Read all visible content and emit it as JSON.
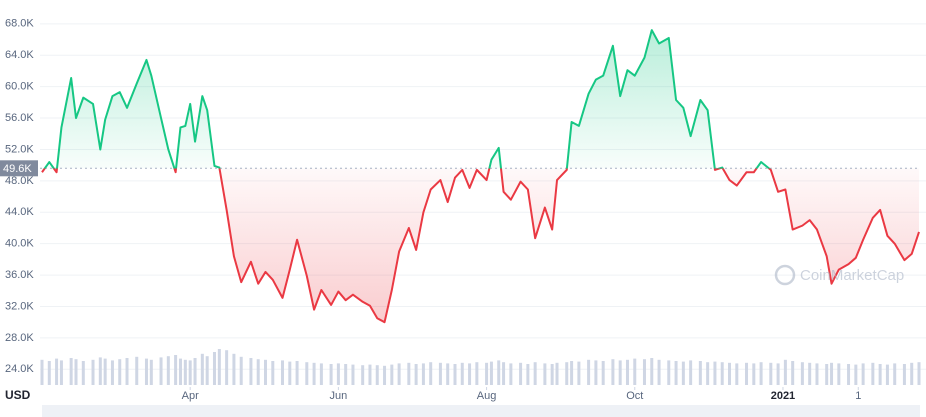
{
  "chart_data": {
    "type": "line",
    "currency": "USD",
    "watermark": "CoinMarketCap",
    "x": [
      0,
      3,
      6,
      8,
      12,
      14,
      17,
      21,
      24,
      26,
      29,
      32,
      35,
      39,
      43,
      45,
      49,
      52,
      55,
      57,
      59,
      61,
      63,
      66,
      68,
      71,
      73,
      76,
      79,
      82,
      86,
      89,
      92,
      95,
      99,
      102,
      105,
      109,
      112,
      115,
      119,
      122,
      125,
      128,
      132,
      135,
      138,
      141,
      144,
      147,
      151,
      154,
      157,
      160,
      164,
      167,
      170,
      173,
      176,
      179,
      183,
      185,
      188,
      190,
      193,
      197,
      200,
      203,
      207,
      210,
      212,
      216,
      218,
      221,
      225,
      228,
      231,
      235,
      238,
      241,
      244,
      248,
      251,
      254,
      258,
      261,
      264,
      267,
      271,
      274,
      277,
      280,
      283,
      286,
      290,
      293,
      296,
      300,
      303,
      306,
      309,
      313,
      316,
      319,
      323,
      325,
      328,
      332,
      335,
      338,
      342,
      345,
      348,
      351,
      355,
      358,
      361
    ],
    "values": [
      49100,
      50400,
      49100,
      54800,
      61100,
      56000,
      58600,
      57800,
      52000,
      55800,
      58800,
      59300,
      57300,
      60400,
      63400,
      61400,
      56000,
      52000,
      49100,
      54800,
      55000,
      57800,
      53000,
      58800,
      57000,
      49900,
      49700,
      44300,
      38400,
      35100,
      37700,
      34900,
      36400,
      35400,
      33100,
      36700,
      40500,
      35900,
      31600,
      34100,
      32200,
      33900,
      32800,
      33500,
      32600,
      32100,
      30500,
      30000,
      34100,
      39000,
      42000,
      39200,
      44000,
      46900,
      48100,
      45300,
      48400,
      49400,
      47100,
      49400,
      48100,
      50700,
      52200,
      46600,
      45600,
      47900,
      46900,
      40700,
      44600,
      41800,
      48100,
      49400,
      55500,
      55000,
      59100,
      60900,
      61400,
      65200,
      58800,
      62100,
      61400,
      63700,
      67200,
      65500,
      66200,
      58300,
      57300,
      53700,
      58300,
      57000,
      49400,
      49700,
      48100,
      47400,
      49100,
      49100,
      50400,
      49400,
      46600,
      46900,
      41800,
      42300,
      43000,
      41800,
      38400,
      34900,
      36700,
      37400,
      38200,
      40500,
      43300,
      44300,
      41000,
      40000,
      37900,
      38700,
      41500
    ],
    "volumes": [
      42,
      40,
      44,
      41,
      45,
      43,
      40,
      42,
      46,
      44,
      41,
      43,
      45,
      47,
      44,
      42,
      46,
      48,
      50,
      44,
      42,
      41,
      45,
      52,
      48,
      55,
      60,
      58,
      52,
      47,
      45,
      43,
      42,
      40,
      41,
      39,
      40,
      38,
      37,
      36,
      35,
      36,
      35,
      34,
      33,
      34,
      33,
      32,
      34,
      36,
      37,
      35,
      36,
      38,
      37,
      36,
      35,
      37,
      36,
      38,
      37,
      39,
      41,
      38,
      36,
      37,
      35,
      38,
      36,
      35,
      37,
      38,
      40,
      39,
      42,
      41,
      40,
      43,
      41,
      42,
      44,
      43,
      45,
      42,
      41,
      40,
      39,
      41,
      40,
      38,
      39,
      38,
      37,
      36,
      37,
      36,
      38,
      37,
      36,
      42,
      40,
      38,
      37,
      36,
      35,
      37,
      36,
      35,
      34,
      36,
      37,
      35,
      34,
      36,
      35,
      37,
      38
    ],
    "color_up": "#16c784",
    "color_down": "#ea3943",
    "volume_color": "#cfd6e4",
    "baseline": {
      "value": 49600,
      "label": "49.6K"
    },
    "xlim": [
      0,
      361
    ],
    "xticks": [
      {
        "value": 61,
        "label": "Apr"
      },
      {
        "value": 122,
        "label": "Jun"
      },
      {
        "value": 183,
        "label": "Aug"
      },
      {
        "value": 244,
        "label": "Oct"
      },
      {
        "value": 305,
        "label": "2021",
        "bold": true
      },
      {
        "value": 336,
        "label": "1"
      }
    ],
    "ylim": [
      22000,
      70400
    ],
    "yticks": [
      {
        "value": 24000,
        "label": "24.0K"
      },
      {
        "value": 28000,
        "label": "28.0K"
      },
      {
        "value": 32000,
        "label": "32.0K"
      },
      {
        "value": 36000,
        "label": "36.0K"
      },
      {
        "value": 40000,
        "label": "40.0K"
      },
      {
        "value": 44000,
        "label": "44.0K"
      },
      {
        "value": 48000,
        "label": "48.0K"
      },
      {
        "value": 52000,
        "label": "52.0K"
      },
      {
        "value": 56000,
        "label": "56.0K"
      },
      {
        "value": 60000,
        "label": "60.0K"
      },
      {
        "value": 64000,
        "label": "64.0K"
      },
      {
        "value": 68000,
        "label": "68.0K"
      }
    ],
    "y2lim": [
      0,
      100
    ],
    "grid": true
  }
}
